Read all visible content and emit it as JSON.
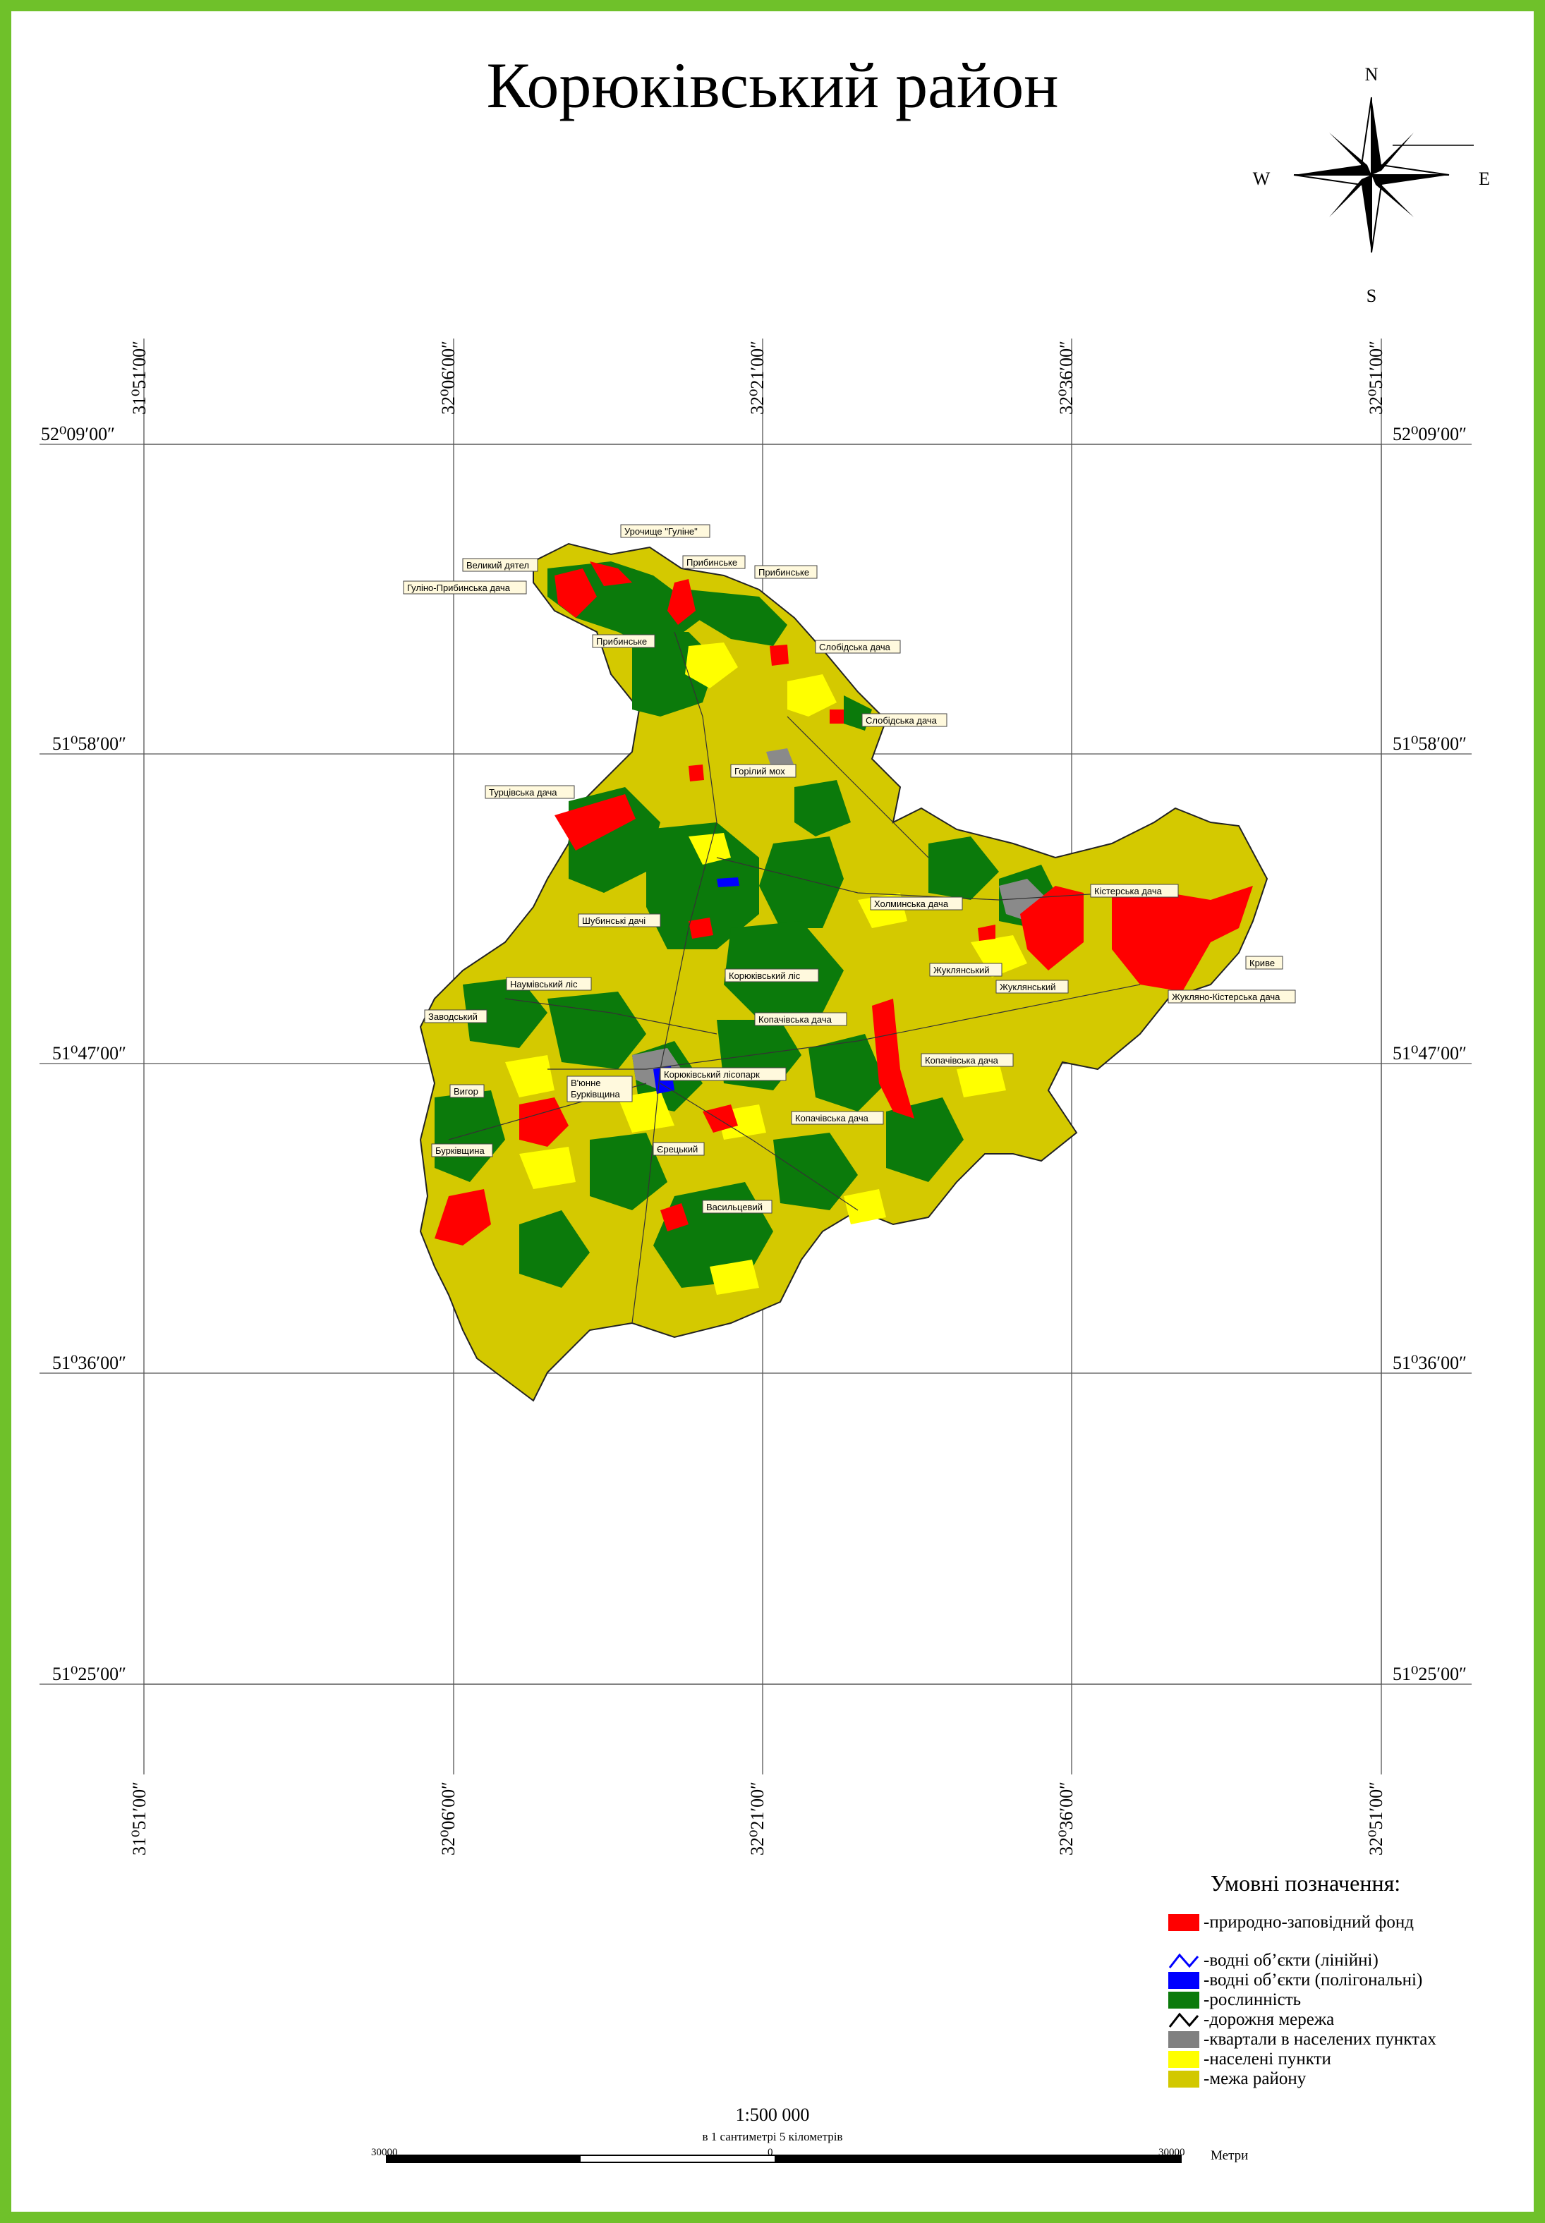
{
  "title": "Корюківський район",
  "compass": {
    "n": "N",
    "s": "S",
    "w": "W",
    "e": "E"
  },
  "coords": {
    "top_longitudes": [
      "31⁰51′00″",
      "32⁰06′00″",
      "32⁰21′00″",
      "32⁰36′00″",
      "32⁰51′00″"
    ],
    "latitudes": [
      "52⁰09′00″",
      "51⁰58′00″",
      "51⁰47′00″",
      "51⁰36′00″",
      "51⁰25′00″"
    ]
  },
  "places": [
    "Урочище \"Гуліне\"",
    "Великий дятел",
    "Прибинське",
    "Прибинське",
    "Гуліно-Прибинська дача",
    "Прибинське",
    "Слобідська дача",
    "Слобідська дача",
    "Горілий мох",
    "Турцівська дача",
    "Холминська дача",
    "Кістерська дача",
    "Шубинські дачі",
    "Криве",
    "Жукляно-Кістерська дача",
    "Жуклянський",
    "Жуклянський",
    "Корюківський ліс",
    "Наумівський ліс",
    "Заводський",
    "Копачівська дача",
    "Копачівська дача",
    "Вигор",
    "В'юнне",
    "Бурківщина",
    "Корюківський лісопарк",
    "Бурківщина",
    "Копачівська дача",
    "Єрецький",
    "Васильцевий"
  ],
  "legend": {
    "title": "Умовні позначення:",
    "items": [
      {
        "label": "-природно-заповідний фонд",
        "color": "#ff0000"
      },
      {
        "label": "-водні об’єкти (лінійні)",
        "color": "#0000ff"
      },
      {
        "label": "-водні об’єкти (полігональні)",
        "color": "#0000ff"
      },
      {
        "label": "-рослинність",
        "color": "#0b7a0b"
      },
      {
        "label": "-дорожня мережа",
        "color": "#000000"
      },
      {
        "label": "-квартали в населених пунктах",
        "color": "#808080"
      },
      {
        "label": "-населені пункти",
        "color": "#ffff00"
      },
      {
        "label": "-межа району",
        "color": "#d2c800"
      }
    ]
  },
  "scale": {
    "ratio": "1:500 000",
    "note": "в 1 сантиметрі 5 кілометрів",
    "ticks": [
      "30000",
      "0",
      "30000"
    ],
    "unit": "Метри"
  }
}
